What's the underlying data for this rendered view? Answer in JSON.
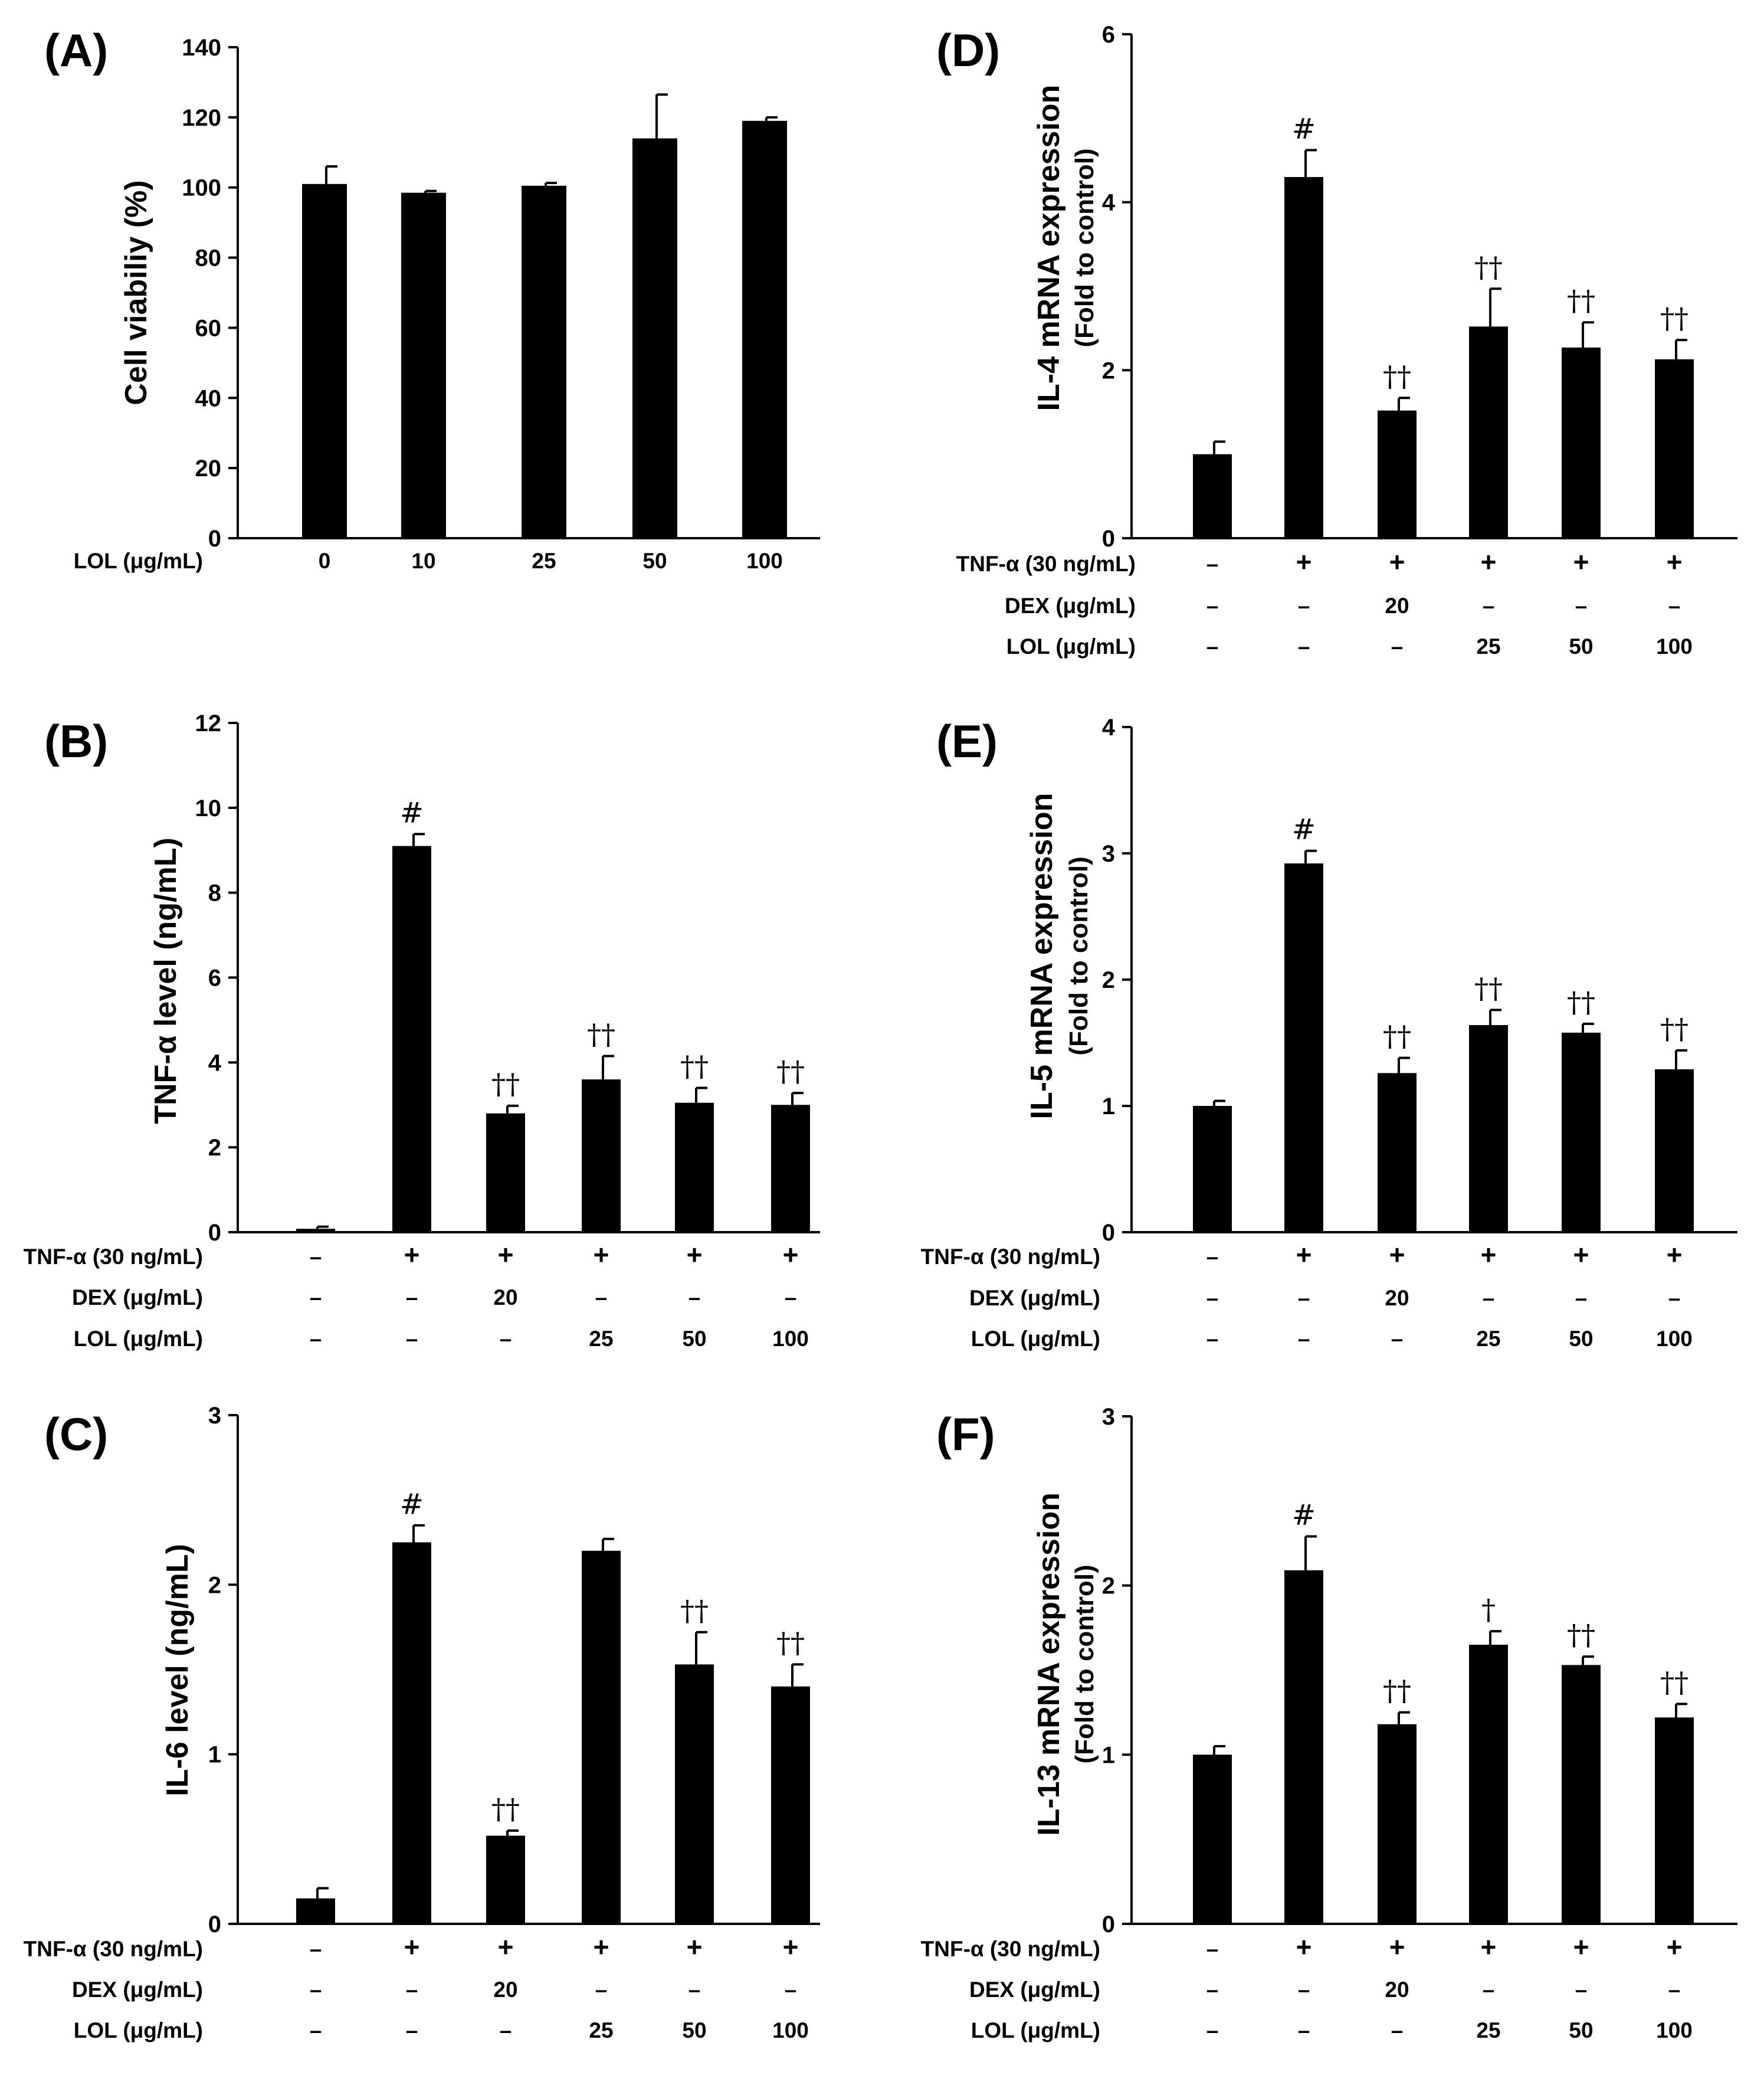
{
  "chart_data": [
    {
      "panel": "(A)",
      "type": "bar",
      "ylabel": "Cell viabiliy (%)",
      "ylim": [
        0,
        140
      ],
      "yticks": [
        0,
        20,
        40,
        60,
        80,
        100,
        120,
        140
      ],
      "bar_color": "#000000",
      "categories": [
        "0",
        "10",
        "25",
        "50",
        "100"
      ],
      "values": [
        101,
        98.5,
        100.5,
        114,
        119
      ],
      "errors": [
        5,
        0.5,
        0.8,
        12.5,
        1
      ],
      "sig": [
        "",
        "",
        "",
        "",
        ""
      ],
      "rows": [
        {
          "label": "LOL (μg/mL)",
          "values": [
            "0",
            "10",
            "25",
            "50",
            "100"
          ]
        }
      ]
    },
    {
      "panel": "(B)",
      "type": "bar",
      "ylabel": "TNF-α level (ng/mL)",
      "ylim": [
        0,
        12
      ],
      "yticks": [
        0,
        2,
        4,
        6,
        8,
        10,
        12
      ],
      "bar_color": "#000000",
      "values": [
        0.08,
        9.1,
        2.8,
        3.6,
        3.05,
        3.0
      ],
      "errors": [
        0.05,
        0.28,
        0.18,
        0.55,
        0.35,
        0.28
      ],
      "sig": [
        "",
        "#",
        "††",
        "††",
        "††",
        "††"
      ],
      "rows": [
        {
          "label": "TNF-α (30 ng/mL)",
          "values": [
            "–",
            "+",
            "+",
            "+",
            "+",
            "+"
          ]
        },
        {
          "label": "DEX (μg/mL)",
          "values": [
            "–",
            "–",
            "20",
            "–",
            "–",
            "–"
          ]
        },
        {
          "label": "LOL (μg/mL)",
          "values": [
            "–",
            "–",
            "–",
            "25",
            "50",
            "100"
          ]
        }
      ]
    },
    {
      "panel": "(C)",
      "type": "bar",
      "ylabel": "IL-6 level (ng/mL)",
      "ylim": [
        0,
        3
      ],
      "yticks": [
        0,
        1,
        2,
        3
      ],
      "bar_color": "#000000",
      "values": [
        0.15,
        2.25,
        0.52,
        2.2,
        1.53,
        1.4
      ],
      "errors": [
        0.06,
        0.1,
        0.03,
        0.07,
        0.19,
        0.13
      ],
      "sig": [
        "",
        "#",
        "††",
        "",
        "††",
        "††"
      ],
      "rows": [
        {
          "label": "TNF-α (30 ng/mL)",
          "values": [
            "–",
            "+",
            "+",
            "+",
            "+",
            "+"
          ]
        },
        {
          "label": "DEX (μg/mL)",
          "values": [
            "–",
            "–",
            "20",
            "–",
            "–",
            "–"
          ]
        },
        {
          "label": "LOL (μg/mL)",
          "values": [
            "–",
            "–",
            "–",
            "25",
            "50",
            "100"
          ]
        }
      ]
    },
    {
      "panel": "(D)",
      "type": "bar",
      "ylabel": "IL-4 mRNA expression",
      "ylabel2": "(Fold to control)",
      "ylim": [
        0,
        6
      ],
      "yticks": [
        0,
        2,
        4,
        6
      ],
      "bar_color": "#000000",
      "values": [
        1.0,
        4.3,
        1.52,
        2.52,
        2.27,
        2.13
      ],
      "errors": [
        0.15,
        0.32,
        0.15,
        0.45,
        0.3,
        0.23
      ],
      "sig": [
        "",
        "#",
        "††",
        "††",
        "††",
        "††"
      ],
      "rows": [
        {
          "label": "TNF-α (30 ng/mL)",
          "values": [
            "–",
            "+",
            "+",
            "+",
            "+",
            "+"
          ]
        },
        {
          "label": "DEX (μg/mL)",
          "values": [
            "–",
            "–",
            "20",
            "–",
            "–",
            "–"
          ]
        },
        {
          "label": "LOL (μg/mL)",
          "values": [
            "–",
            "–",
            "–",
            "25",
            "50",
            "100"
          ]
        }
      ]
    },
    {
      "panel": "(E)",
      "type": "bar",
      "ylabel": "IL-5 mRNA expression",
      "ylabel2": "(Fold to control)",
      "ylim": [
        0,
        4
      ],
      "yticks": [
        0,
        1,
        2,
        3,
        4
      ],
      "bar_color": "#000000",
      "values": [
        1.0,
        2.92,
        1.26,
        1.64,
        1.58,
        1.29
      ],
      "errors": [
        0.04,
        0.1,
        0.12,
        0.12,
        0.07,
        0.15
      ],
      "sig": [
        "",
        "#",
        "††",
        "††",
        "††",
        "††"
      ],
      "rows": [
        {
          "label": "TNF-α (30 ng/mL)",
          "values": [
            "–",
            "+",
            "+",
            "+",
            "+",
            "+"
          ]
        },
        {
          "label": "DEX (μg/mL)",
          "values": [
            "–",
            "–",
            "20",
            "–",
            "–",
            "–"
          ]
        },
        {
          "label": "LOL (μg/mL)",
          "values": [
            "–",
            "–",
            "–",
            "25",
            "50",
            "100"
          ]
        }
      ]
    },
    {
      "panel": "(F)",
      "type": "bar",
      "ylabel": "IL-13 mRNA expression",
      "ylabel2": "(Fold to control)",
      "ylim": [
        0,
        3
      ],
      "yticks": [
        0,
        1,
        2,
        3
      ],
      "bar_color": "#000000",
      "values": [
        1.0,
        2.09,
        1.18,
        1.65,
        1.53,
        1.22
      ],
      "errors": [
        0.05,
        0.2,
        0.07,
        0.08,
        0.05,
        0.08
      ],
      "sig": [
        "",
        "#",
        "††",
        "†",
        "††",
        "††"
      ],
      "rows": [
        {
          "label": "TNF-α (30 ng/mL)",
          "values": [
            "–",
            "+",
            "+",
            "+",
            "+",
            "+"
          ]
        },
        {
          "label": "DEX (μg/mL)",
          "values": [
            "–",
            "–",
            "20",
            "–",
            "–",
            "–"
          ]
        },
        {
          "label": "LOL (μg/mL)",
          "values": [
            "–",
            "–",
            "–",
            "25",
            "50",
            "100"
          ]
        }
      ]
    }
  ]
}
